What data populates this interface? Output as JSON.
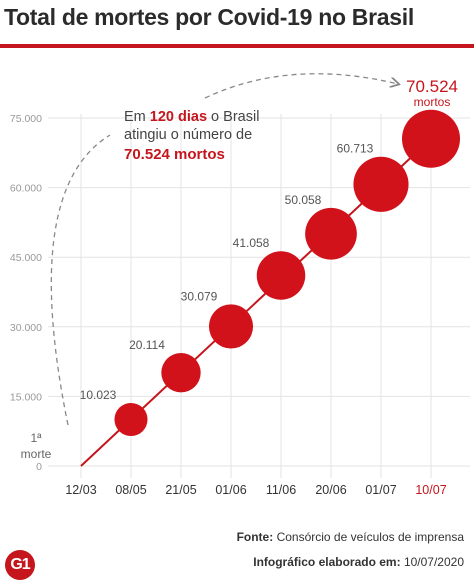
{
  "header": {
    "title": "Total de mortes por Covid-19 no Brasil"
  },
  "colors": {
    "accent": "#c4161c",
    "bubble": "#d1121a",
    "grid": "#e3e3e3",
    "tick": "#999999",
    "annotation": "#888888"
  },
  "chart_data": {
    "type": "scatter",
    "title": "Total de mortes por Covid-19 no Brasil",
    "categories": [
      "12/03",
      "08/05",
      "21/05",
      "01/06",
      "11/06",
      "20/06",
      "01/07",
      "10/07"
    ],
    "values": [
      1,
      10023,
      20114,
      30079,
      41058,
      50058,
      60713,
      70524
    ],
    "value_labels": [
      "",
      "10.023",
      "20.114",
      "30.079",
      "41.058",
      "50.058",
      "60.713",
      "70.524"
    ],
    "highlight_category": "10/07",
    "ylim": [
      0,
      75000
    ],
    "yticks": [
      0,
      15000,
      30000,
      45000,
      60000,
      75000
    ],
    "ytick_labels": [
      "0",
      "15.000",
      "30.000",
      "45.000",
      "60.000",
      "75.000"
    ],
    "grid": true,
    "first_point_label": [
      "1ª",
      "morte"
    ],
    "last_point_label": [
      "70.524",
      "mortos"
    ],
    "annotation": {
      "pre": "Em ",
      "days": "120 dias",
      "mid": " o Brasil",
      "line2": "atingiu o número de",
      "deaths": "70.524 mortos"
    }
  },
  "footer": {
    "source_label": "Fonte:",
    "source_text": "Consórcio de veículos de imprensa",
    "credit_label": "Infográfico elaborado em:",
    "credit_date": "10/07/2020",
    "logo": "G1"
  }
}
